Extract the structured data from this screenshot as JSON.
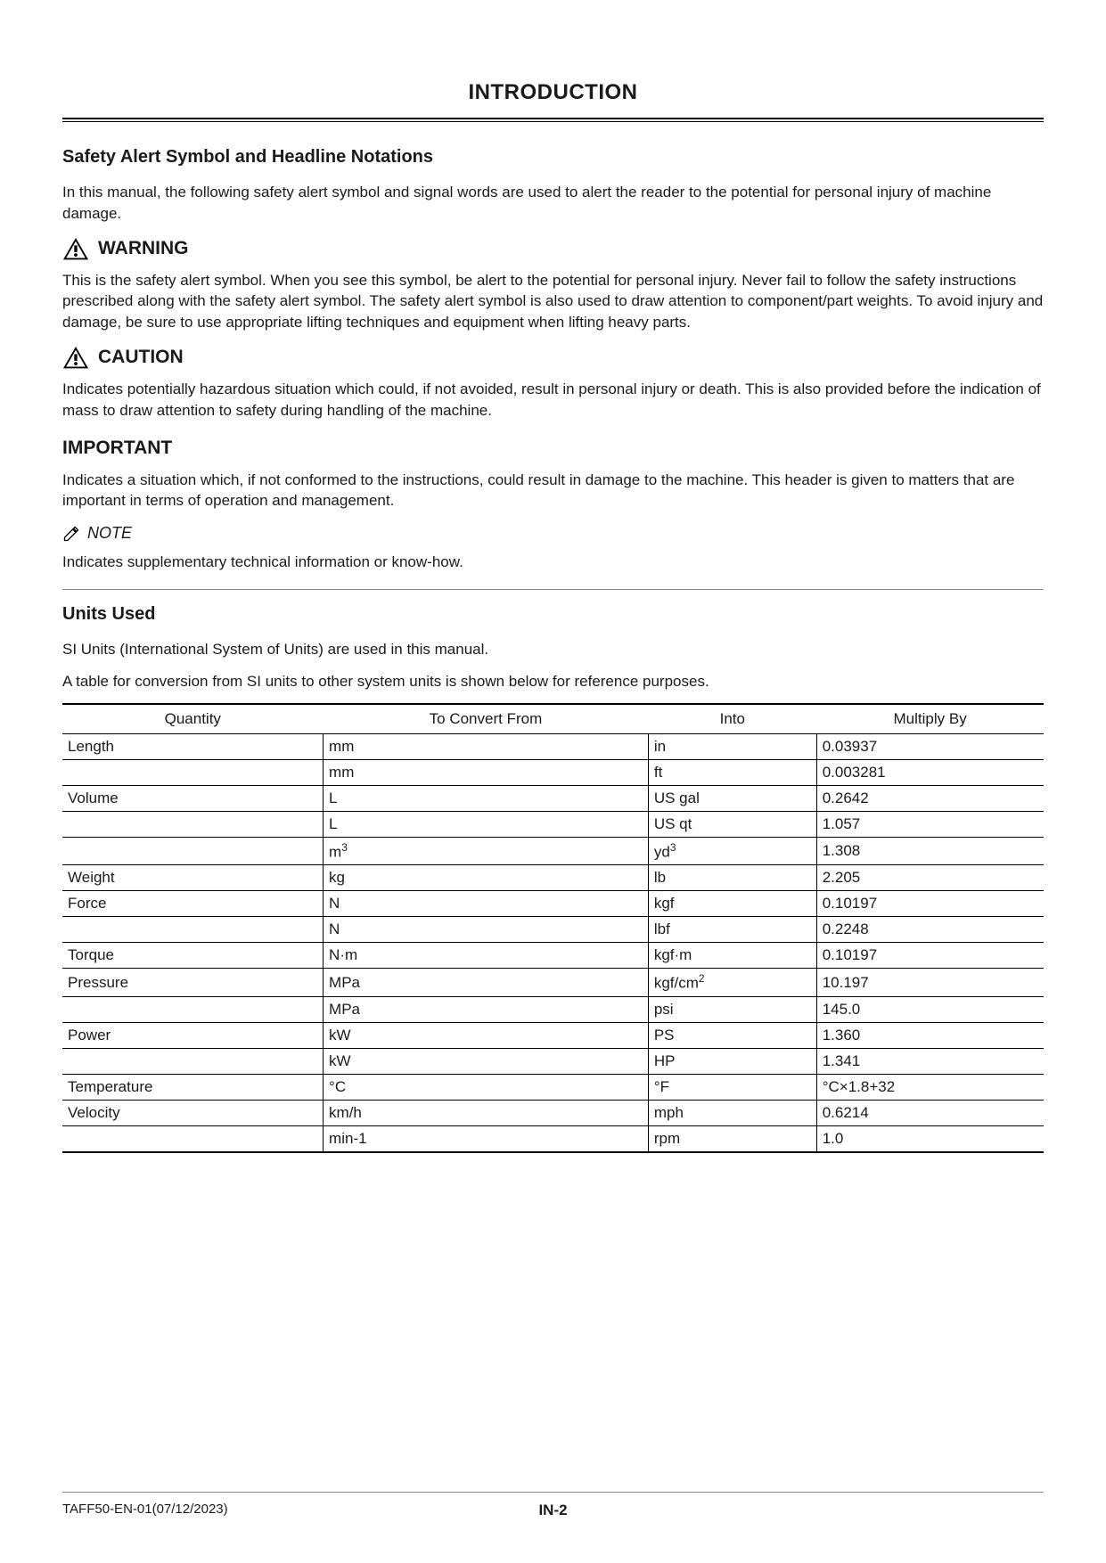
{
  "page": {
    "title": "INTRODUCTION",
    "section1_heading": "Safety Alert Symbol and Headline Notations",
    "intro_para": "In this manual, the following safety alert symbol and signal words are used to alert the reader to the potential for personal injury of machine damage.",
    "warning_label": "WARNING",
    "warning_para": "This is the safety alert symbol. When you see this symbol, be alert to the potential for personal injury. Never fail to follow the safety instructions prescribed along with the safety alert symbol. The safety alert symbol is also used to draw attention to component/part weights. To avoid injury and damage, be sure to use appropriate lifting techniques and equipment when lifting heavy parts.",
    "caution_label": "CAUTION",
    "caution_para": "Indicates potentially hazardous situation which could, if not avoided, result in personal injury or death. This is also provided before the indication of mass to draw attention to safety during handling of the machine.",
    "important_label": "IMPORTANT",
    "important_para": "Indicates a situation which, if not conformed to the instructions, could result in damage to the machine. This header is given to matters that are important in terms of operation and management.",
    "note_label": "NOTE",
    "note_para": "Indicates supplementary technical information or know-how.",
    "units_heading": "Units Used",
    "units_para1": "SI Units (International System of Units) are used in this manual.",
    "units_para2": "A table for conversion from SI units to other system units is shown below for reference purposes."
  },
  "table": {
    "columns": [
      "Quantity",
      "To Convert From",
      "Into",
      "Multiply By"
    ],
    "rows": [
      {
        "quantity": "Length",
        "from": "mm",
        "into": "in",
        "mult": "0.03937"
      },
      {
        "quantity": "",
        "from": "mm",
        "into": "ft",
        "mult": "0.003281"
      },
      {
        "quantity": "Volume",
        "from": "L",
        "into": "US gal",
        "mult": "0.2642"
      },
      {
        "quantity": "",
        "from": "L",
        "into": "US qt",
        "mult": "1.057"
      },
      {
        "quantity": "",
        "from": "m³",
        "into": "yd³",
        "mult": "1.308"
      },
      {
        "quantity": "Weight",
        "from": "kg",
        "into": "lb",
        "mult": "2.205"
      },
      {
        "quantity": "Force",
        "from": "N",
        "into": "kgf",
        "mult": "0.10197"
      },
      {
        "quantity": "",
        "from": "N",
        "into": "lbf",
        "mult": "0.2248"
      },
      {
        "quantity": "Torque",
        "from": "N·m",
        "into": "kgf·m",
        "mult": "0.10197"
      },
      {
        "quantity": "Pressure",
        "from": "MPa",
        "into": "kgf/cm²",
        "mult": "10.197"
      },
      {
        "quantity": "",
        "from": "MPa",
        "into": "psi",
        "mult": "145.0"
      },
      {
        "quantity": "Power",
        "from": "kW",
        "into": "PS",
        "mult": "1.360"
      },
      {
        "quantity": "",
        "from": "kW",
        "into": "HP",
        "mult": "1.341"
      },
      {
        "quantity": "Temperature",
        "from": "°C",
        "into": "°F",
        "mult": "°C×1.8+32"
      },
      {
        "quantity": "Velocity",
        "from": "km/h",
        "into": "mph",
        "mult": "0.6214"
      },
      {
        "quantity": "",
        "from": "min-1",
        "into": "rpm",
        "mult": "1.0"
      }
    ]
  },
  "footer": {
    "left": "TAFF50-EN-01(07/12/2023)",
    "center": "IN-2"
  }
}
